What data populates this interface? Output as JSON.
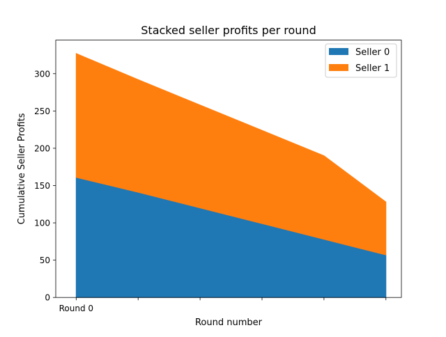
{
  "chart_data": {
    "type": "area",
    "stacked": true,
    "title": "Stacked seller profits per round",
    "xlabel": "Round number",
    "ylabel": "Cumulative Seller Profits",
    "x": [
      0,
      1,
      2,
      3,
      4,
      5
    ],
    "xlim": [
      -0.33,
      5.25
    ],
    "xticklabels": [
      "Round 0",
      "",
      "",
      "",
      "",
      ""
    ],
    "ylim": [
      0,
      345
    ],
    "yticks": [
      0,
      50,
      100,
      150,
      200,
      250,
      300
    ],
    "series": [
      {
        "name": "Seller 0",
        "color": "#1f77b4",
        "values": [
          161,
          141,
          120,
          99,
          78,
          57
        ]
      },
      {
        "name": "Seller 1",
        "color": "#ff7f0e",
        "values": [
          166,
          151,
          138,
          125,
          112,
          71
        ]
      }
    ],
    "legend_position": "upper right",
    "grid": false
  }
}
